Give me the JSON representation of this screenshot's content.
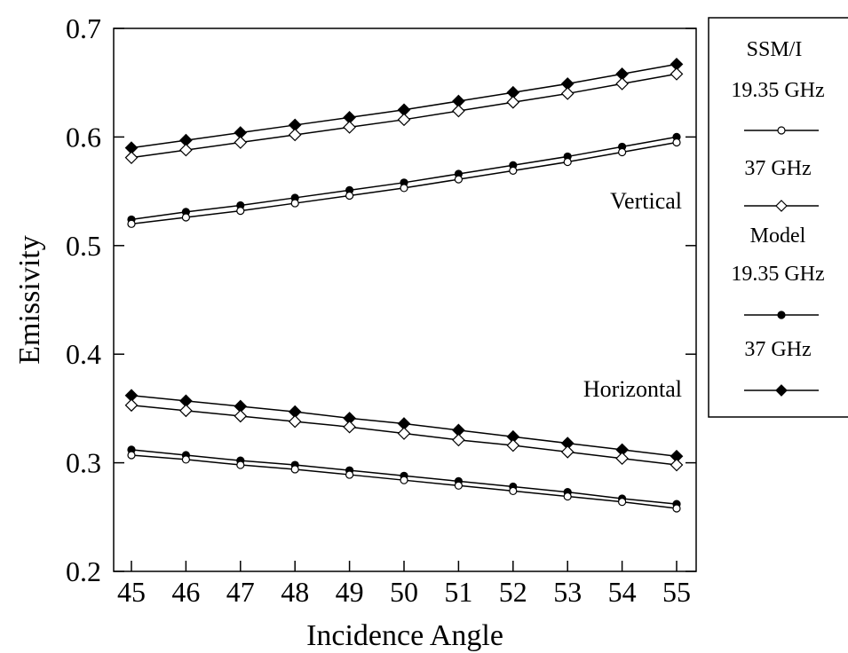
{
  "chart_data": {
    "type": "line",
    "xlabel": "Incidence Angle",
    "ylabel": "Emissivity",
    "xlim": [
      45,
      55
    ],
    "ylim": [
      0.2,
      0.7
    ],
    "x": [
      45,
      46,
      47,
      48,
      49,
      50,
      51,
      52,
      53,
      54,
      55
    ],
    "x_ticks": [
      "45",
      "46",
      "47",
      "48",
      "49",
      "50",
      "51",
      "52",
      "53",
      "54",
      "55"
    ],
    "y_ticks": [
      "0.2",
      "0.3",
      "0.4",
      "0.5",
      "0.6",
      "0.7"
    ],
    "y_tick_values": [
      0.2,
      0.3,
      0.4,
      0.5,
      0.6,
      0.7
    ],
    "grid": false,
    "legend_position": "right",
    "annotations": [
      {
        "text": "Vertical",
        "x": 53.3,
        "y": 0.543
      },
      {
        "text": "Horizontal",
        "x": 53.3,
        "y": 0.375
      }
    ],
    "legend": {
      "groups": [
        {
          "heading": "SSM/I",
          "entries": [
            {
              "label": "19.35 GHz",
              "marker": "open-circle"
            },
            {
              "label": "37 GHz",
              "marker": "open-diamond"
            }
          ]
        },
        {
          "heading": "Model",
          "entries": [
            {
              "label": "19.35 GHz",
              "marker": "filled-circle"
            },
            {
              "label": "37 GHz",
              "marker": "filled-diamond"
            }
          ]
        }
      ]
    },
    "series": [
      {
        "marker": "filled-diamond",
        "values": [
          0.59,
          0.597,
          0.604,
          0.611,
          0.618,
          0.625,
          0.633,
          0.641,
          0.649,
          0.658,
          0.667
        ]
      },
      {
        "marker": "open-diamond",
        "values": [
          0.581,
          0.588,
          0.595,
          0.602,
          0.609,
          0.616,
          0.624,
          0.632,
          0.64,
          0.649,
          0.658
        ]
      },
      {
        "marker": "filled-circle",
        "values": [
          0.524,
          0.531,
          0.537,
          0.544,
          0.551,
          0.558,
          0.566,
          0.574,
          0.582,
          0.591,
          0.6
        ]
      },
      {
        "marker": "open-circle",
        "values": [
          0.52,
          0.526,
          0.532,
          0.539,
          0.546,
          0.553,
          0.561,
          0.569,
          0.577,
          0.586,
          0.595
        ]
      },
      {
        "marker": "filled-diamond",
        "values": [
          0.362,
          0.357,
          0.352,
          0.347,
          0.341,
          0.336,
          0.33,
          0.324,
          0.318,
          0.312,
          0.306
        ]
      },
      {
        "marker": "open-diamond",
        "values": [
          0.353,
          0.348,
          0.343,
          0.338,
          0.333,
          0.327,
          0.321,
          0.316,
          0.31,
          0.304,
          0.298
        ]
      },
      {
        "marker": "filled-circle",
        "values": [
          0.312,
          0.307,
          0.302,
          0.298,
          0.293,
          0.288,
          0.283,
          0.278,
          0.273,
          0.267,
          0.262
        ]
      },
      {
        "marker": "open-circle",
        "values": [
          0.307,
          0.303,
          0.298,
          0.294,
          0.289,
          0.284,
          0.279,
          0.274,
          0.269,
          0.264,
          0.258
        ]
      }
    ]
  }
}
